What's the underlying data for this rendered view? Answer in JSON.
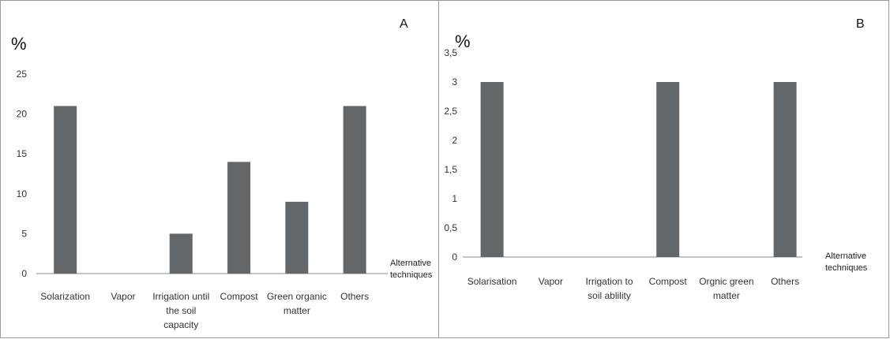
{
  "chart_data": [
    {
      "type": "bar",
      "panel_label": "A",
      "ylabel": "%",
      "xlabel": [
        "Alternative",
        "techniques"
      ],
      "categories": [
        [
          "Solarization"
        ],
        [
          "Vapor"
        ],
        [
          "Irrigation until",
          "the soil",
          "capacity"
        ],
        [
          "Compost"
        ],
        [
          "Green organic",
          "matter"
        ],
        [
          "Others"
        ]
      ],
      "values": [
        21,
        0,
        5,
        14,
        9,
        21
      ],
      "yticks": [
        "0",
        "5",
        "10",
        "15",
        "20",
        "25"
      ],
      "ylim": [
        0,
        25
      ],
      "grid": false,
      "bar_color": "#646769"
    },
    {
      "type": "bar",
      "panel_label": "B",
      "ylabel": "%",
      "xlabel": [
        "Alternative",
        "techniques"
      ],
      "categories": [
        [
          "Solarisation"
        ],
        [
          "Vapor"
        ],
        [
          "Irrigation to",
          "soil ablility"
        ],
        [
          "Compost"
        ],
        [
          "Orgnic green",
          "matter"
        ],
        [
          "Others"
        ]
      ],
      "values": [
        3,
        0,
        0,
        3,
        0,
        3
      ],
      "yticks": [
        "0",
        "0,5",
        "1",
        "1,5",
        "2",
        "2,5",
        "3",
        "3,5"
      ],
      "ylim": [
        0,
        3.5
      ],
      "grid": false,
      "bar_color": "#646769"
    }
  ]
}
